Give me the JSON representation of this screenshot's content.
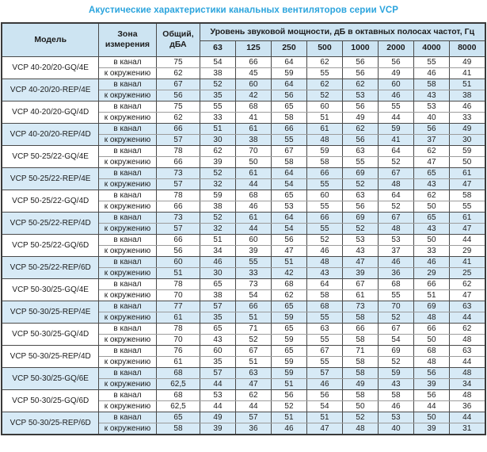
{
  "title": "Акустические характеристики канальных вентиляторов  серии VCP",
  "colors": {
    "accent": "#2ba4dd",
    "header_bg": "#cde4f2",
    "row_highlight": "#d7eaf6"
  },
  "table": {
    "headers": {
      "model": "Модель",
      "zone": "Зона измерения",
      "total": "Общий, дБА",
      "levels_group": "Уровень звуковой мощности, дБ в октавных полосах частот, Гц"
    },
    "freq_headers": [
      "63",
      "125",
      "250",
      "500",
      "1000",
      "2000",
      "4000",
      "8000"
    ],
    "zone_labels": {
      "duct": "в канал",
      "ambient": "к окружению"
    },
    "rows": [
      {
        "model": "VCP 40-20/20-GQ/4E",
        "highlight": false,
        "duct": {
          "total": "75",
          "levels": [
            54,
            66,
            64,
            62,
            56,
            56,
            55,
            49
          ]
        },
        "ambient": {
          "total": "62",
          "levels": [
            38,
            45,
            59,
            55,
            56,
            49,
            46,
            41
          ]
        }
      },
      {
        "model": "VCP 40-20/20-REP/4E",
        "highlight": true,
        "duct": {
          "total": "67",
          "levels": [
            52,
            60,
            64,
            62,
            62,
            60,
            58,
            51
          ]
        },
        "ambient": {
          "total": "56",
          "levels": [
            35,
            42,
            56,
            52,
            53,
            46,
            43,
            38
          ]
        }
      },
      {
        "model": "VCP 40-20/20-GQ/4D",
        "highlight": false,
        "duct": {
          "total": "75",
          "levels": [
            55,
            68,
            65,
            60,
            56,
            55,
            53,
            46
          ]
        },
        "ambient": {
          "total": "62",
          "levels": [
            33,
            41,
            58,
            51,
            49,
            44,
            40,
            33
          ]
        }
      },
      {
        "model": "VCP 40-20/20-REP/4D",
        "highlight": true,
        "duct": {
          "total": "66",
          "levels": [
            51,
            61,
            66,
            61,
            62,
            59,
            56,
            49
          ]
        },
        "ambient": {
          "total": "57",
          "levels": [
            30,
            38,
            55,
            48,
            56,
            41,
            37,
            30
          ]
        }
      },
      {
        "model": "VCP 50-25/22-GQ/4E",
        "highlight": false,
        "duct": {
          "total": "78",
          "levels": [
            62,
            70,
            67,
            59,
            63,
            64,
            62,
            59
          ]
        },
        "ambient": {
          "total": "66",
          "levels": [
            39,
            50,
            58,
            58,
            55,
            52,
            47,
            50
          ]
        }
      },
      {
        "model": "VCP 50-25/22-REP/4E",
        "highlight": true,
        "duct": {
          "total": "73",
          "levels": [
            52,
            61,
            64,
            66,
            69,
            67,
            65,
            61
          ]
        },
        "ambient": {
          "total": "57",
          "levels": [
            32,
            44,
            54,
            55,
            52,
            48,
            43,
            47
          ]
        }
      },
      {
        "model": "VCP 50-25/22-GQ/4D",
        "highlight": false,
        "duct": {
          "total": "78",
          "levels": [
            59,
            68,
            65,
            60,
            63,
            64,
            62,
            58
          ]
        },
        "ambient": {
          "total": "66",
          "levels": [
            38,
            46,
            53,
            55,
            56,
            52,
            50,
            55
          ]
        }
      },
      {
        "model": "VCP 50-25/22-REP/4D",
        "highlight": true,
        "duct": {
          "total": "73",
          "levels": [
            52,
            61,
            64,
            66,
            69,
            67,
            65,
            61
          ]
        },
        "ambient": {
          "total": "57",
          "levels": [
            32,
            44,
            54,
            55,
            52,
            48,
            43,
            47
          ]
        }
      },
      {
        "model": "VCP 50-25/22-GQ/6D",
        "highlight": false,
        "duct": {
          "total": "66",
          "levels": [
            51,
            60,
            56,
            52,
            53,
            53,
            50,
            44
          ]
        },
        "ambient": {
          "total": "56",
          "levels": [
            34,
            39,
            47,
            46,
            43,
            37,
            33,
            29
          ]
        }
      },
      {
        "model": "VCP 50-25/22-REP/6D",
        "highlight": true,
        "duct": {
          "total": "60",
          "levels": [
            46,
            55,
            51,
            48,
            47,
            46,
            46,
            41
          ]
        },
        "ambient": {
          "total": "51",
          "levels": [
            30,
            33,
            42,
            43,
            39,
            36,
            29,
            25
          ]
        }
      },
      {
        "model": "VCP 50-30/25-GQ/4E",
        "highlight": false,
        "duct": {
          "total": "78",
          "levels": [
            65,
            73,
            68,
            64,
            67,
            68,
            66,
            62
          ]
        },
        "ambient": {
          "total": "70",
          "levels": [
            38,
            54,
            62,
            58,
            61,
            55,
            51,
            47
          ]
        }
      },
      {
        "model": "VCP 50-30/25-REP/4E",
        "highlight": true,
        "duct": {
          "total": "77",
          "levels": [
            57,
            66,
            65,
            68,
            73,
            70,
            69,
            63
          ]
        },
        "ambient": {
          "total": "61",
          "levels": [
            35,
            51,
            59,
            55,
            58,
            52,
            48,
            44
          ]
        }
      },
      {
        "model": "VCP 50-30/25-GQ/4D",
        "highlight": false,
        "duct": {
          "total": "78",
          "levels": [
            65,
            71,
            65,
            63,
            66,
            67,
            66,
            62
          ]
        },
        "ambient": {
          "total": "70",
          "levels": [
            43,
            52,
            59,
            55,
            58,
            54,
            50,
            48
          ]
        }
      },
      {
        "model": "VCP 50-30/25-REP/4D",
        "highlight": false,
        "duct": {
          "total": "76",
          "levels": [
            60,
            67,
            65,
            67,
            71,
            69,
            68,
            63
          ]
        },
        "ambient": {
          "total": "61",
          "levels": [
            35,
            51,
            59,
            55,
            58,
            52,
            48,
            44
          ]
        }
      },
      {
        "model": "VCP 50-30/25-GQ/6E",
        "highlight": true,
        "duct": {
          "total": "68",
          "levels": [
            57,
            63,
            59,
            57,
            58,
            59,
            56,
            48
          ]
        },
        "ambient": {
          "total": "62,5",
          "levels": [
            44,
            47,
            51,
            46,
            49,
            43,
            39,
            34
          ]
        }
      },
      {
        "model": "VCP 50-30/25-GQ/6D",
        "highlight": false,
        "duct": {
          "total": "68",
          "levels": [
            53,
            62,
            56,
            56,
            58,
            58,
            56,
            48
          ]
        },
        "ambient": {
          "total": "62,5",
          "levels": [
            44,
            44,
            52,
            54,
            50,
            46,
            44,
            36
          ]
        }
      },
      {
        "model": "VCP 50-30/25-REP/6D",
        "highlight": true,
        "duct": {
          "total": "65",
          "levels": [
            49,
            57,
            51,
            51,
            52,
            53,
            50,
            44
          ]
        },
        "ambient": {
          "total": "58",
          "levels": [
            39,
            36,
            46,
            47,
            48,
            40,
            39,
            31
          ]
        }
      }
    ]
  }
}
